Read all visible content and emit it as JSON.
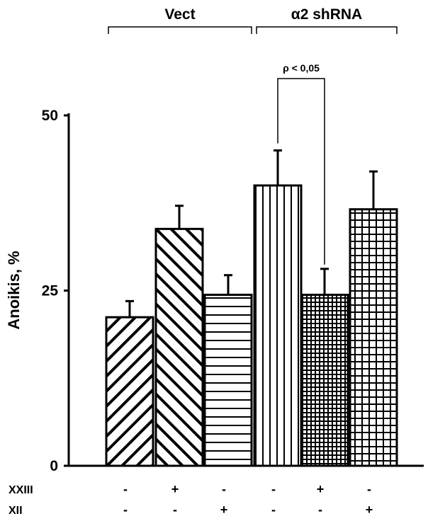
{
  "chart_data": {
    "type": "bar",
    "title": "",
    "xlabel": "",
    "ylabel": "Anoikis, %",
    "ylim": [
      0,
      50
    ],
    "yticks": [
      0,
      25,
      50
    ],
    "grid": false,
    "groups": [
      {
        "label": "Vect",
        "bars": [
          0,
          1,
          2
        ]
      },
      {
        "label": "α2 shRNA",
        "bars": [
          3,
          4,
          5
        ]
      }
    ],
    "bars": [
      {
        "value": 21.2,
        "error": 2.3,
        "pattern": "diagonal-forward",
        "XXIII": "-",
        "XII": "-"
      },
      {
        "value": 33.8,
        "error": 3.3,
        "pattern": "diagonal-backward",
        "XXIII": "+",
        "XII": "-"
      },
      {
        "value": 24.4,
        "error": 2.8,
        "pattern": "horizontal-lines",
        "XXIII": "-",
        "XII": "+"
      },
      {
        "value": 40.0,
        "error": 5.0,
        "pattern": "vertical-lines",
        "XXIII": "-",
        "XII": "-"
      },
      {
        "value": 24.4,
        "error": 3.7,
        "pattern": "fine-crosshatch",
        "XXIII": "+",
        "XII": "-"
      },
      {
        "value": 36.6,
        "error": 5.4,
        "pattern": "grid",
        "XXIII": "-",
        "XII": "+"
      }
    ],
    "treatment_rows": [
      "XXIII",
      "XII"
    ],
    "annotation": {
      "text": "ρ < 0,05",
      "between": [
        3,
        4
      ]
    }
  }
}
